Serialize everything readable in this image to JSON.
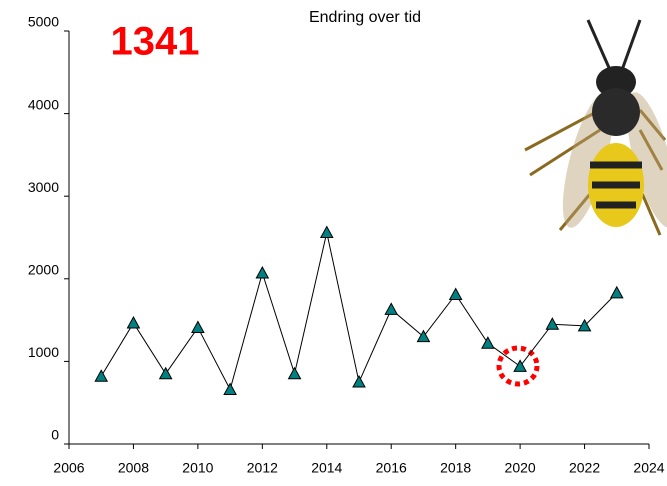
{
  "chart_data": {
    "type": "line",
    "title": "Endring over tid",
    "annotation": "1341",
    "x": [
      2007,
      2008,
      2009,
      2010,
      2011,
      2012,
      2013,
      2014,
      2015,
      2016,
      2017,
      2018,
      2019,
      2020,
      2021,
      2022,
      2023
    ],
    "series": [
      {
        "color": "#008080",
        "values": [
          820,
          1465,
          850,
          1410,
          660,
          2070,
          850,
          2560,
          750,
          1630,
          1300,
          1810,
          1220,
          940,
          1450,
          1430,
          1830
        ]
      }
    ],
    "xlim": [
      2006,
      2024
    ],
    "xticks": [
      2006,
      2008,
      2010,
      2012,
      2014,
      2016,
      2018,
      2020,
      2022,
      2024
    ],
    "ylim": [
      0,
      5000
    ],
    "yticks": [
      0,
      1000,
      2000,
      3000,
      4000,
      5000
    ],
    "grid": false
  }
}
